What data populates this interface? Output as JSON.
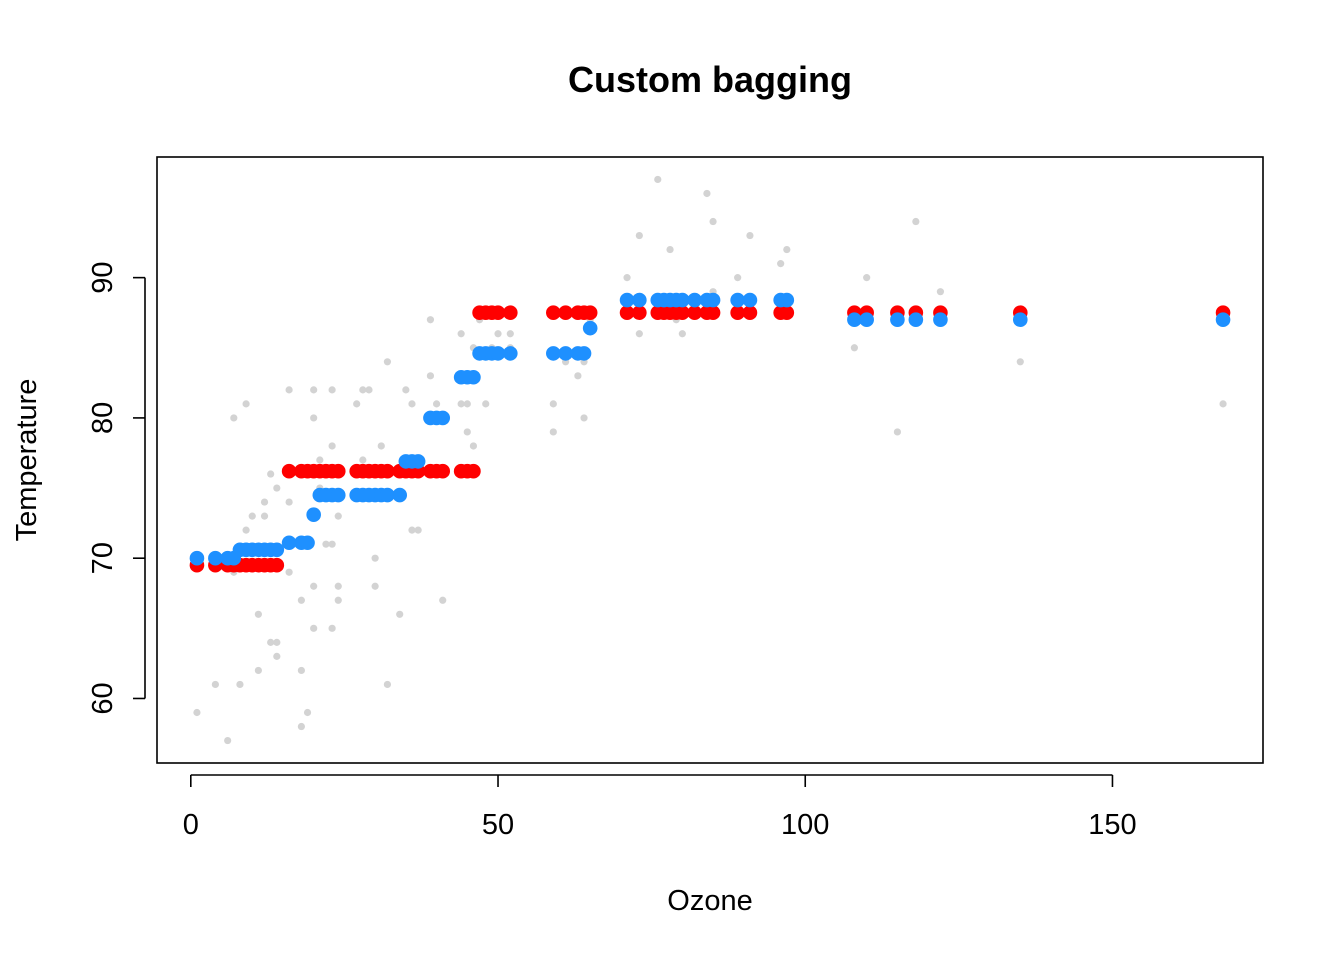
{
  "chart_data": {
    "type": "scatter",
    "title": "Custom bagging",
    "xlabel": "Ozone",
    "ylabel": "Temperature",
    "xlim": [
      -5.5,
      174.5
    ],
    "ylim": [
      55.4,
      98.6
    ],
    "xticks": [
      0,
      50,
      100,
      150
    ],
    "yticks": [
      60,
      70,
      80,
      90
    ],
    "grid": false,
    "legend": "none",
    "colors": {
      "raw": "#d3d3d3",
      "bagged_red": "#ff0000",
      "bagged_blue": "#1e90ff",
      "axis": "#000000"
    },
    "series": [
      {
        "color": "#d3d3d3",
        "marker_scale": "small",
        "points": [
          [
            1,
            59
          ],
          [
            4,
            61
          ],
          [
            6,
            57
          ],
          [
            7,
            80
          ],
          [
            7,
            69
          ],
          [
            8,
            61
          ],
          [
            9,
            81
          ],
          [
            9,
            72
          ],
          [
            10,
            73
          ],
          [
            11,
            62
          ],
          [
            11,
            66
          ],
          [
            12,
            73
          ],
          [
            12,
            74
          ],
          [
            13,
            76
          ],
          [
            13,
            64
          ],
          [
            14,
            64
          ],
          [
            14,
            63
          ],
          [
            14,
            75
          ],
          [
            16,
            82
          ],
          [
            16,
            74
          ],
          [
            16,
            69
          ],
          [
            18,
            67
          ],
          [
            18,
            62
          ],
          [
            18,
            58
          ],
          [
            19,
            59
          ],
          [
            20,
            80
          ],
          [
            20,
            65
          ],
          [
            20,
            68
          ],
          [
            20,
            82
          ],
          [
            21,
            75
          ],
          [
            21,
            77
          ],
          [
            22,
            71
          ],
          [
            23,
            82
          ],
          [
            23,
            78
          ],
          [
            23,
            71
          ],
          [
            23,
            65
          ],
          [
            24,
            67
          ],
          [
            24,
            68
          ],
          [
            24,
            73
          ],
          [
            27,
            81
          ],
          [
            28,
            77
          ],
          [
            28,
            82
          ],
          [
            29,
            82
          ],
          [
            30,
            68
          ],
          [
            30,
            70
          ],
          [
            31,
            78
          ],
          [
            32,
            61
          ],
          [
            32,
            84
          ],
          [
            32,
            76
          ],
          [
            34,
            66
          ],
          [
            35,
            82
          ],
          [
            35,
            76
          ],
          [
            36,
            81
          ],
          [
            36,
            72
          ],
          [
            37,
            72
          ],
          [
            39,
            87
          ],
          [
            39,
            83
          ],
          [
            40,
            81
          ],
          [
            40,
            80
          ],
          [
            41,
            67
          ],
          [
            44,
            86
          ],
          [
            44,
            81
          ],
          [
            45,
            81
          ],
          [
            45,
            79
          ],
          [
            46,
            78
          ],
          [
            46,
            85
          ],
          [
            47,
            87
          ],
          [
            48,
            81
          ],
          [
            49,
            85
          ],
          [
            50,
            86
          ],
          [
            52,
            86
          ],
          [
            52,
            85
          ],
          [
            59,
            81
          ],
          [
            59,
            79
          ],
          [
            61,
            84
          ],
          [
            63,
            83
          ],
          [
            64,
            84
          ],
          [
            64,
            80
          ],
          [
            65,
            87
          ],
          [
            71,
            90
          ],
          [
            73,
            93
          ],
          [
            73,
            86
          ],
          [
            76,
            97
          ],
          [
            78,
            92
          ],
          [
            79,
            87
          ],
          [
            80,
            86
          ],
          [
            82,
            88
          ],
          [
            84,
            96
          ],
          [
            85,
            94
          ],
          [
            85,
            89
          ],
          [
            89,
            90
          ],
          [
            91,
            93
          ],
          [
            96,
            91
          ],
          [
            97,
            92
          ],
          [
            108,
            85
          ],
          [
            110,
            90
          ],
          [
            115,
            79
          ],
          [
            118,
            94
          ],
          [
            122,
            89
          ],
          [
            135,
            84
          ],
          [
            168,
            81
          ]
        ]
      },
      {
        "color": "#ff0000",
        "marker_scale": "large",
        "points": [
          [
            1,
            69.5
          ],
          [
            4,
            69.5
          ],
          [
            6,
            69.5
          ],
          [
            7,
            69.5
          ],
          [
            8,
            69.5
          ],
          [
            9,
            69.5
          ],
          [
            10,
            69.5
          ],
          [
            11,
            69.5
          ],
          [
            12,
            69.5
          ],
          [
            13,
            69.5
          ],
          [
            14,
            69.5
          ],
          [
            16,
            76.2
          ],
          [
            18,
            76.2
          ],
          [
            19,
            76.2
          ],
          [
            20,
            76.2
          ],
          [
            21,
            76.2
          ],
          [
            22,
            76.2
          ],
          [
            23,
            76.2
          ],
          [
            24,
            76.2
          ],
          [
            27,
            76.2
          ],
          [
            28,
            76.2
          ],
          [
            29,
            76.2
          ],
          [
            30,
            76.2
          ],
          [
            31,
            76.2
          ],
          [
            32,
            76.2
          ],
          [
            34,
            76.2
          ],
          [
            35,
            76.2
          ],
          [
            36,
            76.2
          ],
          [
            37,
            76.2
          ],
          [
            39,
            76.2
          ],
          [
            40,
            76.2
          ],
          [
            41,
            76.2
          ],
          [
            44,
            76.2
          ],
          [
            45,
            76.2
          ],
          [
            46,
            76.2
          ],
          [
            47,
            87.5
          ],
          [
            48,
            87.5
          ],
          [
            49,
            87.5
          ],
          [
            50,
            87.5
          ],
          [
            52,
            87.5
          ],
          [
            59,
            87.5
          ],
          [
            61,
            87.5
          ],
          [
            63,
            87.5
          ],
          [
            64,
            87.5
          ],
          [
            65,
            87.5
          ],
          [
            71,
            87.5
          ],
          [
            73,
            87.5
          ],
          [
            76,
            87.5
          ],
          [
            77,
            87.5
          ],
          [
            78,
            87.5
          ],
          [
            79,
            87.5
          ],
          [
            80,
            87.5
          ],
          [
            82,
            87.5
          ],
          [
            84,
            87.5
          ],
          [
            85,
            87.5
          ],
          [
            89,
            87.5
          ],
          [
            91,
            87.5
          ],
          [
            96,
            87.5
          ],
          [
            97,
            87.5
          ],
          [
            108,
            87.5
          ],
          [
            110,
            87.5
          ],
          [
            115,
            87.5
          ],
          [
            118,
            87.5
          ],
          [
            122,
            87.5
          ],
          [
            135,
            87.5
          ],
          [
            168,
            87.5
          ]
        ]
      },
      {
        "color": "#1e90ff",
        "marker_scale": "large",
        "points": [
          [
            1,
            70
          ],
          [
            4,
            70
          ],
          [
            6,
            70
          ],
          [
            7,
            70
          ],
          [
            8,
            70.6
          ],
          [
            9,
            70.6
          ],
          [
            10,
            70.6
          ],
          [
            11,
            70.6
          ],
          [
            12,
            70.6
          ],
          [
            13,
            70.6
          ],
          [
            14,
            70.6
          ],
          [
            16,
            71.1
          ],
          [
            18,
            71.1
          ],
          [
            19,
            71.1
          ],
          [
            20,
            73.1
          ],
          [
            21,
            74.5
          ],
          [
            22,
            74.5
          ],
          [
            23,
            74.5
          ],
          [
            24,
            74.5
          ],
          [
            27,
            74.5
          ],
          [
            28,
            74.5
          ],
          [
            29,
            74.5
          ],
          [
            30,
            74.5
          ],
          [
            31,
            74.5
          ],
          [
            32,
            74.5
          ],
          [
            34,
            74.5
          ],
          [
            35,
            76.9
          ],
          [
            36,
            76.9
          ],
          [
            37,
            76.9
          ],
          [
            39,
            80
          ],
          [
            40,
            80
          ],
          [
            41,
            80
          ],
          [
            44,
            82.9
          ],
          [
            45,
            82.9
          ],
          [
            46,
            82.9
          ],
          [
            47,
            84.6
          ],
          [
            48,
            84.6
          ],
          [
            49,
            84.6
          ],
          [
            50,
            84.6
          ],
          [
            52,
            84.6
          ],
          [
            59,
            84.6
          ],
          [
            61,
            84.6
          ],
          [
            63,
            84.6
          ],
          [
            64,
            84.6
          ],
          [
            65,
            86.4
          ],
          [
            71,
            88.4
          ],
          [
            73,
            88.4
          ],
          [
            76,
            88.4
          ],
          [
            77,
            88.4
          ],
          [
            78,
            88.4
          ],
          [
            79,
            88.4
          ],
          [
            80,
            88.4
          ],
          [
            82,
            88.4
          ],
          [
            84,
            88.4
          ],
          [
            85,
            88.4
          ],
          [
            89,
            88.4
          ],
          [
            91,
            88.4
          ],
          [
            96,
            88.4
          ],
          [
            97,
            88.4
          ],
          [
            108,
            87
          ],
          [
            110,
            87
          ],
          [
            115,
            87
          ],
          [
            118,
            87
          ],
          [
            122,
            87
          ],
          [
            135,
            87
          ],
          [
            168,
            87
          ]
        ]
      }
    ]
  }
}
